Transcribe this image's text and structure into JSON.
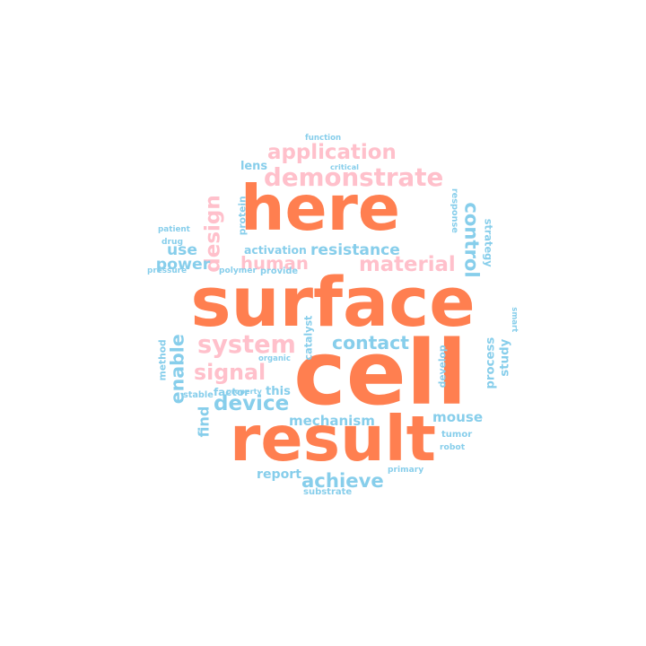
{
  "colors": {
    "orange": "#FF7F50",
    "pink": "#FFC0CB",
    "blue": "#87CEEB"
  },
  "words": [
    {
      "text": "surface",
      "color": "orange"
    },
    {
      "text": "cell",
      "color": "orange"
    },
    {
      "text": "here",
      "color": "orange"
    },
    {
      "text": "result",
      "color": "orange"
    },
    {
      "text": "application",
      "color": "pink"
    },
    {
      "text": "demonstrate",
      "color": "pink"
    },
    {
      "text": "material",
      "color": "pink"
    },
    {
      "text": "system",
      "color": "pink"
    },
    {
      "text": "signal",
      "color": "pink"
    },
    {
      "text": "human",
      "color": "pink"
    },
    {
      "text": "design",
      "color": "pink"
    },
    {
      "text": "contact",
      "color": "blue"
    },
    {
      "text": "achieve",
      "color": "blue"
    },
    {
      "text": "device",
      "color": "blue"
    },
    {
      "text": "control",
      "color": "blue"
    },
    {
      "text": "enable",
      "color": "blue"
    },
    {
      "text": "resistance",
      "color": "blue"
    },
    {
      "text": "power",
      "color": "blue"
    },
    {
      "text": "mechanism",
      "color": "blue"
    },
    {
      "text": "mouse",
      "color": "blue"
    },
    {
      "text": "report",
      "color": "blue"
    },
    {
      "text": "process",
      "color": "blue"
    },
    {
      "text": "study",
      "color": "blue"
    },
    {
      "text": "find",
      "color": "blue"
    },
    {
      "text": "use",
      "color": "blue"
    },
    {
      "text": "lens",
      "color": "blue"
    },
    {
      "text": "protein",
      "color": "blue"
    },
    {
      "text": "activation",
      "color": "blue"
    },
    {
      "text": "response",
      "color": "blue"
    },
    {
      "text": "strategy",
      "color": "blue"
    },
    {
      "text": "factor",
      "color": "blue"
    },
    {
      "text": "this",
      "color": "blue"
    },
    {
      "text": "develop",
      "color": "blue"
    },
    {
      "text": "catalyst",
      "color": "blue"
    },
    {
      "text": "method",
      "color": "blue"
    },
    {
      "text": "function",
      "color": "blue"
    },
    {
      "text": "critical",
      "color": "blue"
    },
    {
      "text": "patient",
      "color": "blue"
    },
    {
      "text": "drug",
      "color": "blue"
    },
    {
      "text": "pressure",
      "color": "blue"
    },
    {
      "text": "polymer",
      "color": "blue"
    },
    {
      "text": "provide",
      "color": "blue"
    },
    {
      "text": "smart",
      "color": "blue"
    },
    {
      "text": "organic",
      "color": "blue"
    },
    {
      "text": "stable",
      "color": "blue"
    },
    {
      "text": "property",
      "color": "blue"
    },
    {
      "text": "tumor",
      "color": "blue"
    },
    {
      "text": "robot",
      "color": "blue"
    },
    {
      "text": "primary",
      "color": "blue"
    },
    {
      "text": "substrate",
      "color": "blue"
    }
  ]
}
